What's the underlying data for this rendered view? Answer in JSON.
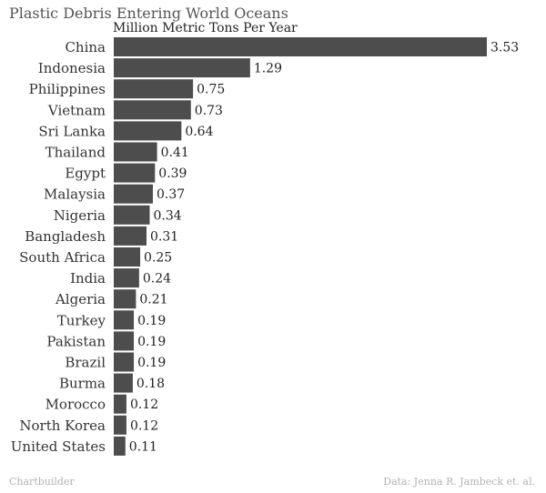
{
  "colors": {
    "bar": "#4d4d4d",
    "text": "#333333"
  },
  "footer": {
    "left": "Chartbuilder",
    "right": "Data: Jenna R. Jambeck et. al."
  },
  "chart_data": {
    "type": "bar",
    "orientation": "horizontal",
    "title": "Plastic Debris Entering World Oceans",
    "subtitle": "Million Metric Tons Per Year",
    "xlim": [
      0,
      3.53
    ],
    "grid": false,
    "legend": "none",
    "categories": [
      "China",
      "Indonesia",
      "Philippines",
      "Vietnam",
      "Sri Lanka",
      "Thailand",
      "Egypt",
      "Malaysia",
      "Nigeria",
      "Bangladesh",
      "South Africa",
      "India",
      "Algeria",
      "Turkey",
      "Pakistan",
      "Brazil",
      "Burma",
      "Morocco",
      "North Korea",
      "United States"
    ],
    "values": [
      3.53,
      1.29,
      0.75,
      0.73,
      0.64,
      0.41,
      0.39,
      0.37,
      0.34,
      0.31,
      0.25,
      0.24,
      0.21,
      0.19,
      0.19,
      0.19,
      0.18,
      0.12,
      0.12,
      0.11
    ],
    "value_labels": [
      "3.53",
      "1.29",
      "0.75",
      "0.73",
      "0.64",
      "0.41",
      "0.39",
      "0.37",
      "0.34",
      "0.31",
      "0.25",
      "0.24",
      "0.21",
      "0.19",
      "0.19",
      "0.19",
      "0.18",
      "0.12",
      "0.12",
      "0.11"
    ]
  }
}
